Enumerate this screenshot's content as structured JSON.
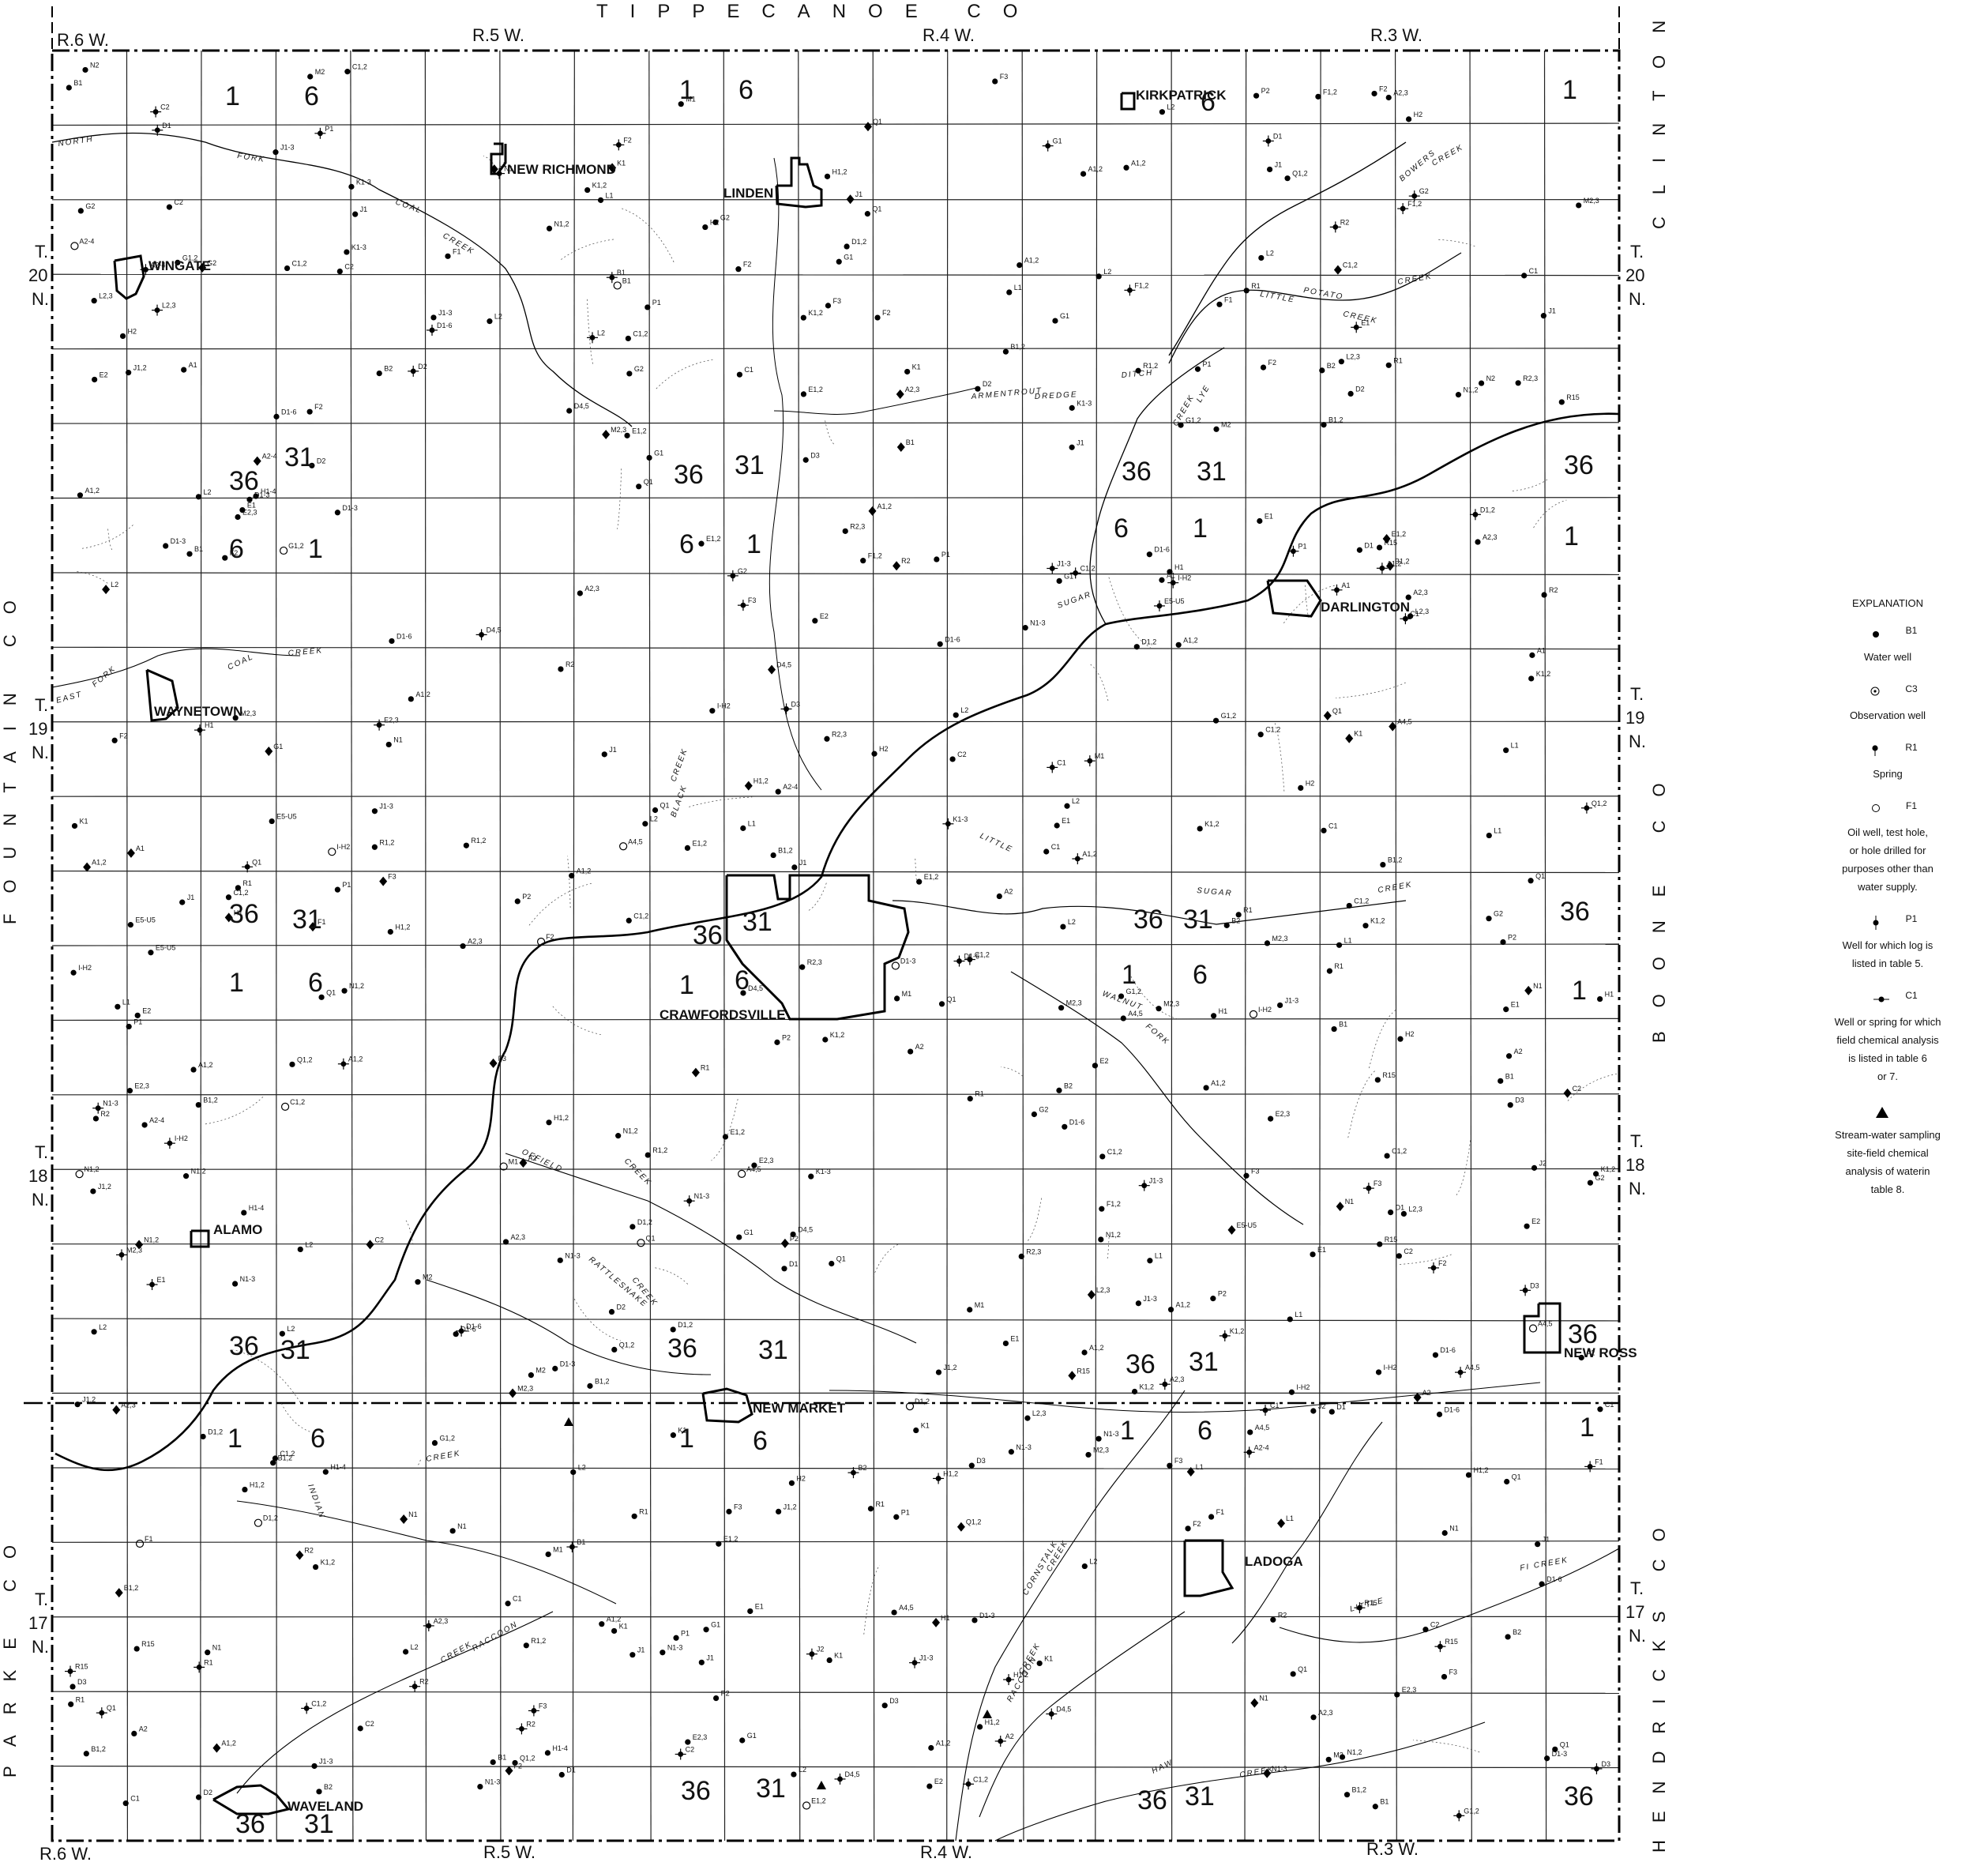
{
  "map": {
    "county_labels": {
      "top": "TIPPECANOE CO",
      "left_upper": "FOUNTAIN CO",
      "left_lower": "PARKE CO",
      "right_upper": "CLINTON CO",
      "right_middle": "BOONE CO",
      "right_lower": "HENDRICKS CO"
    },
    "ranges_top": [
      "R.6 W.",
      "R.5 W.",
      "R.4 W.",
      "R.3 W."
    ],
    "ranges_bottom": [
      "R.6 W.",
      "R.5 W.",
      "R.4 W.",
      "R.3 W."
    ],
    "townships": [
      {
        "t": "T.",
        "n": "20",
        "nn": "N."
      },
      {
        "t": "T.",
        "n": "19",
        "nn": "N."
      },
      {
        "t": "T.",
        "n": "18",
        "nn": "N."
      },
      {
        "t": "T.",
        "n": "17",
        "nn": "N."
      }
    ],
    "section_numbers": [
      "1",
      "6",
      "36",
      "31"
    ],
    "towns": [
      {
        "name": "WINGATE"
      },
      {
        "name": "NEW RICHMOND"
      },
      {
        "name": "LINDEN"
      },
      {
        "name": "KIRKPATRICK"
      },
      {
        "name": "DARLINGTON"
      },
      {
        "name": "WAYNETOWN"
      },
      {
        "name": "CRAWFORDSVILLE"
      },
      {
        "name": "ALAMO"
      },
      {
        "name": "NEW MARKET"
      },
      {
        "name": "NEW ROSS"
      },
      {
        "name": "LADOGA"
      },
      {
        "name": "WAVELAND"
      }
    ],
    "streams": [
      "NORTH",
      "FORK",
      "COAL",
      "CREEK",
      "SUGAR",
      "CREEK",
      "LITTLE",
      "POTATO",
      "CREEK",
      "BOWERS",
      "CREEK",
      "ARMENTROUT",
      "DREDGE",
      "DITCH",
      "LYE",
      "CREEK",
      "BLACK",
      "CREEK",
      "LITTLE",
      "SUGAR",
      "CREEK",
      "WALNUT",
      "FORK",
      "OFFIELD",
      "CREEK",
      "RATTLESNAKE",
      "CREEK",
      "INDIAN",
      "CREEK",
      "RACCOON",
      "CREEK",
      "CORNSTALK",
      "CREEK",
      "LITTLE",
      "RACCOON",
      "CREEK",
      "HAW",
      "CREEK",
      "EAST",
      "FORK",
      "COAL",
      "CREEK",
      "FI CREEK"
    ],
    "point_labels": [
      "L1",
      "R1",
      "K1",
      "H1",
      "Q1",
      "B1",
      "E1",
      "P1",
      "A1",
      "D1",
      "C1",
      "M1",
      "N1",
      "G1",
      "J1",
      "F1",
      "N1,2",
      "D2",
      "E2",
      "P2",
      "K1,2",
      "F1,2",
      "R2",
      "A2",
      "M2",
      "H2",
      "C2",
      "J2",
      "G2",
      "B2",
      "L2",
      "N2",
      "R2,3",
      "R15",
      "A2,3",
      "E2,3",
      "M2,3",
      "N1-3",
      "D1-3",
      "E5-U5",
      "H1,2",
      "J1,2",
      "B1,2",
      "A1,2",
      "G1,2",
      "Q1,2",
      "C1,2",
      "D1,2",
      "L2,3",
      "D4,5",
      "A4,5",
      "A2-4",
      "D1-6",
      "J1-3",
      "K1-3",
      "H1-4",
      "I-H2",
      "F2",
      "F3",
      "E1,2",
      "A1,2",
      "R1,2",
      "D3",
      "L2"
    ]
  },
  "legend": {
    "title": "EXPLANATION",
    "items": [
      {
        "symbol_label": "B1",
        "text": [
          "Water well"
        ]
      },
      {
        "symbol_label": "C3",
        "text": [
          "Observation well"
        ]
      },
      {
        "symbol_label": "R1",
        "text": [
          "Spring"
        ]
      },
      {
        "symbol_label": "F1",
        "text": [
          "Oil well, test hole,",
          "or hole drilled for",
          "purposes other than",
          "water supply."
        ]
      },
      {
        "symbol_label": "P1",
        "text": [
          "Well for which log is",
          "listed in table 5."
        ]
      },
      {
        "symbol_label": "C1",
        "text": [
          "Well or spring for which",
          "field chemical analysis",
          "is listed in table 6",
          "or 7."
        ]
      },
      {
        "symbol_label": "",
        "text": [
          "Stream-water sampling",
          "site-field chemical",
          "analysis of waterin",
          "table 8."
        ]
      }
    ]
  }
}
